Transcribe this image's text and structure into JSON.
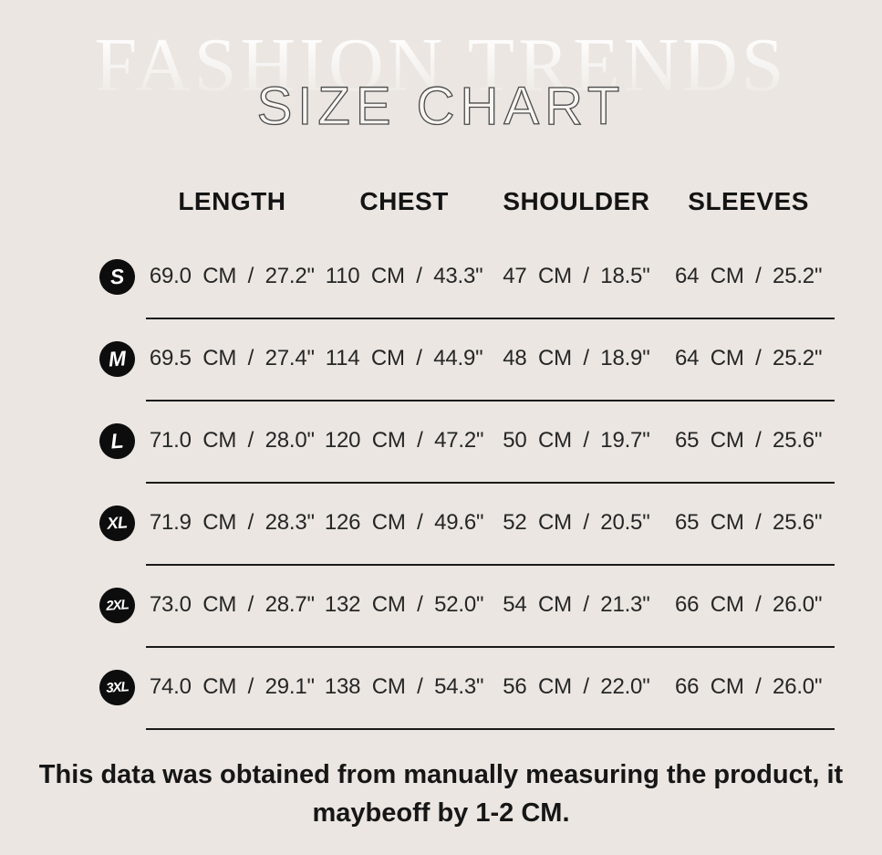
{
  "page": {
    "background_color": "#ebe6e1",
    "badge_color": "#0d0d0d",
    "line_color": "#1a1a1a",
    "text_color": "#161616"
  },
  "watermark": {
    "text": "FASHION TRENDS"
  },
  "title": {
    "text": "SIZE CHART"
  },
  "chart_data": {
    "type": "table",
    "columns": [
      "LENGTH",
      "CHEST",
      "SHOULDER",
      "SLEEVES"
    ],
    "rows": [
      {
        "size": "S",
        "values": [
          "69.0 CM / 27.2\"",
          "110 CM / 43.3\"",
          "47 CM / 18.5\"",
          "64 CM / 25.2\""
        ]
      },
      {
        "size": "M",
        "values": [
          "69.5 CM / 27.4\"",
          "114 CM / 44.9\"",
          "48 CM / 18.9\"",
          "64 CM / 25.2\""
        ]
      },
      {
        "size": "L",
        "values": [
          "71.0 CM / 28.0\"",
          "120 CM / 47.2\"",
          "50 CM / 19.7\"",
          "65 CM / 25.6\""
        ]
      },
      {
        "size": "XL",
        "values": [
          "71.9 CM / 28.3\"",
          "126 CM / 49.6\"",
          "52 CM / 20.5\"",
          "65 CM / 25.6\""
        ]
      },
      {
        "size": "2XL",
        "values": [
          "73.0 CM / 28.7\"",
          "132 CM / 52.0\"",
          "54 CM / 21.3\"",
          "66 CM / 26.0\""
        ]
      },
      {
        "size": "3XL",
        "values": [
          "74.0 CM / 29.1\"",
          "138 CM / 54.3\"",
          "56 CM / 22.0\"",
          "66 CM / 26.0\""
        ]
      }
    ]
  },
  "footer": {
    "line1": "This data was obtained from manually measuring the product, it",
    "line2": "maybeoff by 1-2 CM."
  }
}
